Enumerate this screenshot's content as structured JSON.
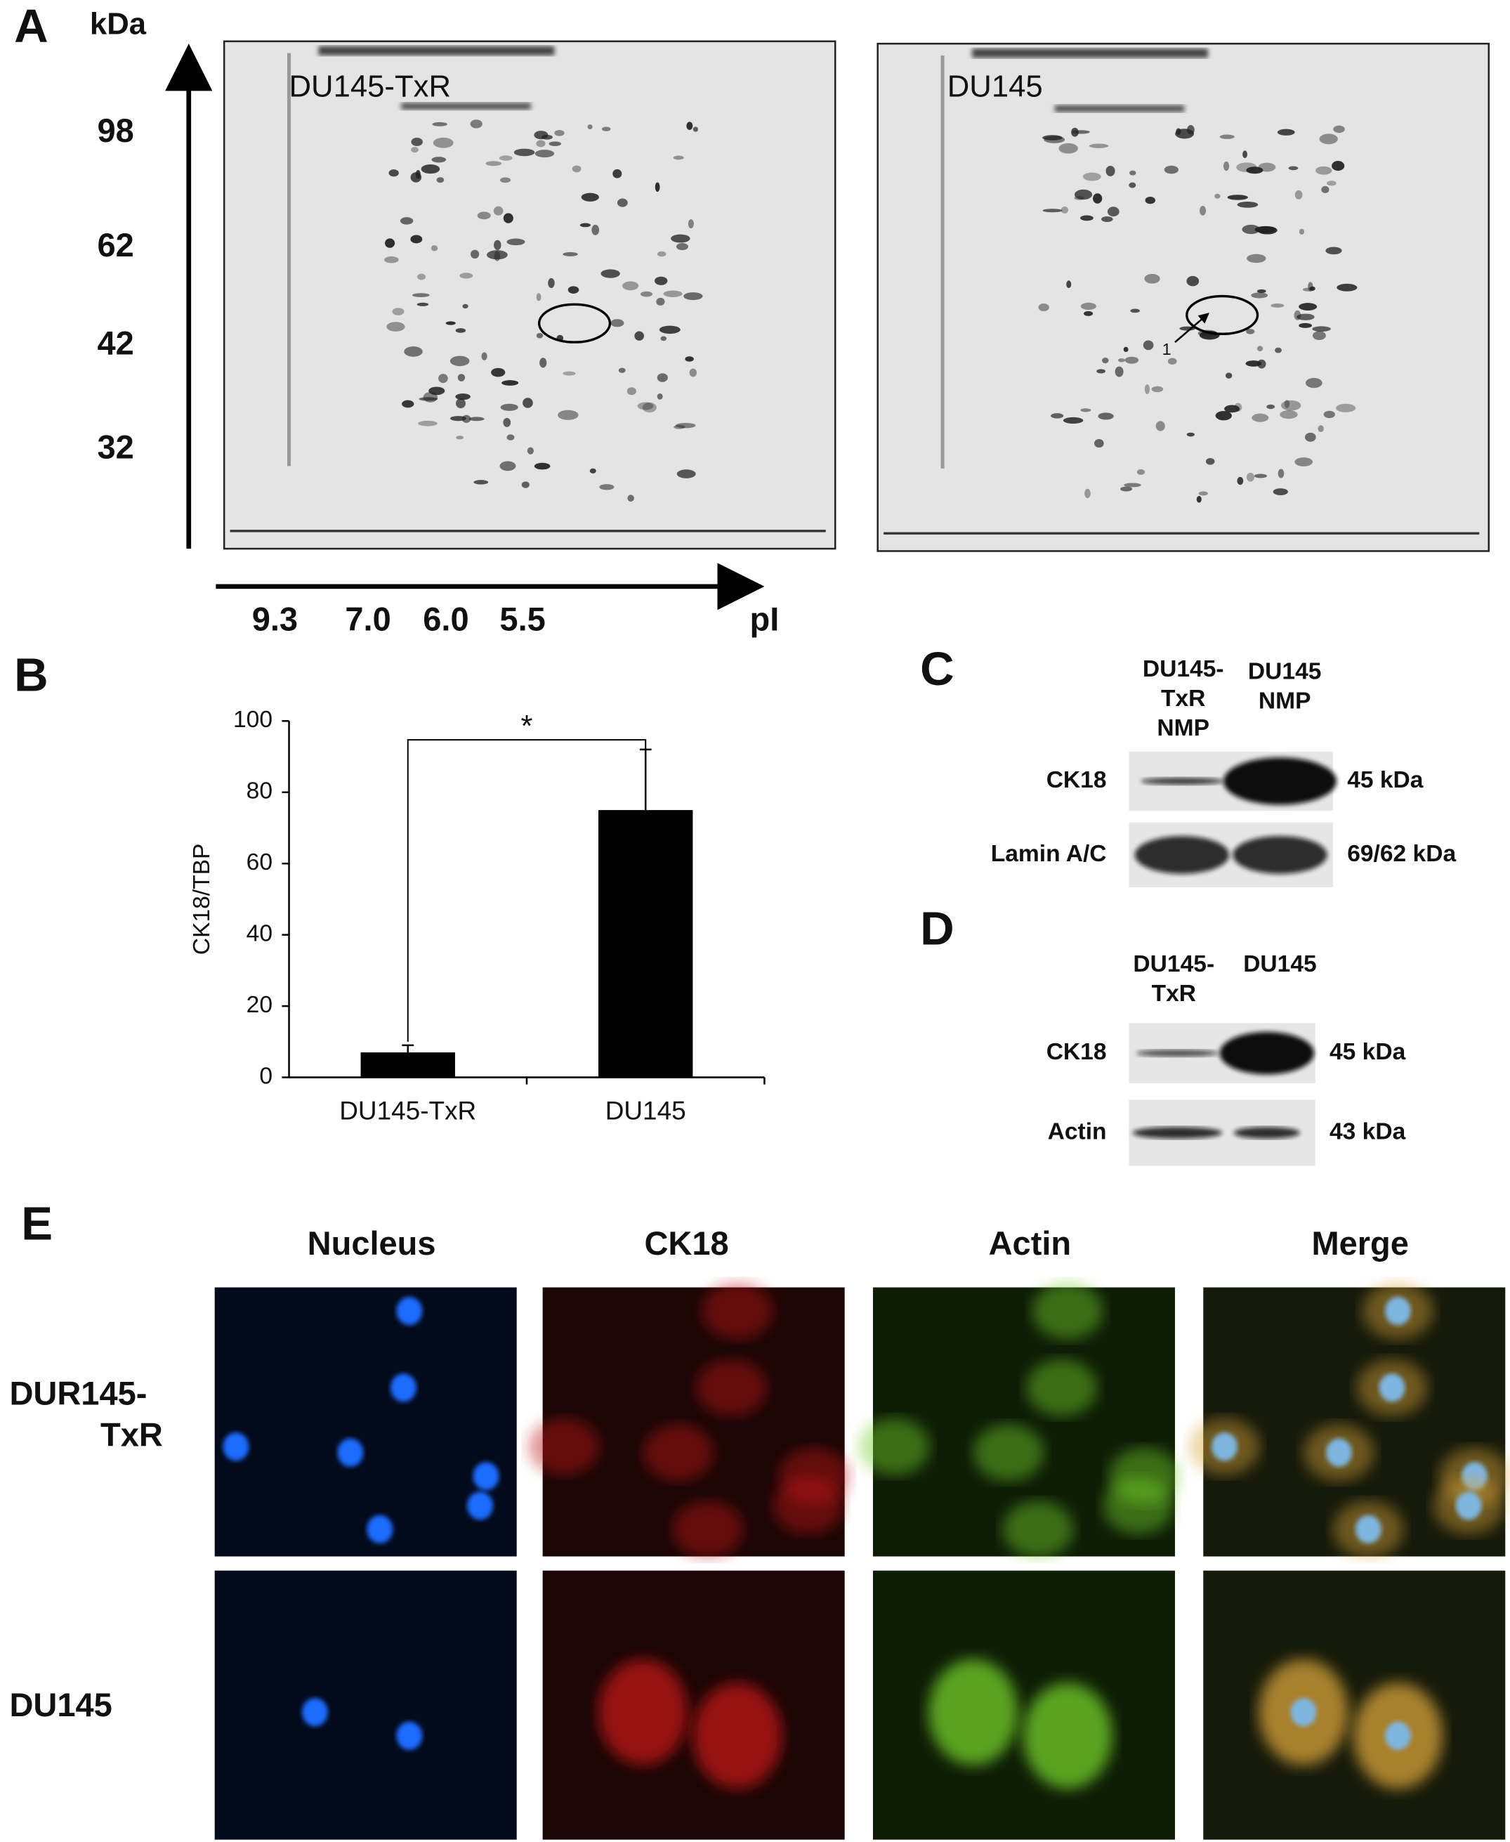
{
  "panel_a": {
    "label": "A",
    "y_unit": "kDa",
    "y_markers": [
      "98",
      "62",
      "42",
      "32"
    ],
    "x_markers": [
      "9.3",
      "7.0",
      "6.0",
      "5.5"
    ],
    "x_unit": "pI",
    "gels": [
      "DU145-TxR",
      "DU145"
    ],
    "spot_label": "1"
  },
  "chart_data": {
    "type": "bar",
    "panel_label": "B",
    "y_label": "CK18/TBP",
    "categories": [
      "DU145-TxR",
      "DU145"
    ],
    "values": [
      7,
      75
    ],
    "errors": [
      2,
      17
    ],
    "color": "#000000",
    "ylim": [
      0,
      100
    ],
    "yticks": [
      0,
      20,
      40,
      60,
      80,
      100
    ],
    "annotation": "*"
  },
  "panel_c": {
    "label": "C",
    "columns": [
      [
        "DU145-",
        "TxR",
        "NMP"
      ],
      [
        "DU145",
        "NMP"
      ]
    ],
    "rows": [
      {
        "name": "CK18",
        "size": "45 kDa"
      },
      {
        "name": "Lamin A/C",
        "size": "69/62 kDa"
      }
    ]
  },
  "panel_d": {
    "label": "D",
    "columns": [
      [
        "DU145-",
        "TxR"
      ],
      [
        "DU145"
      ]
    ],
    "rows": [
      {
        "name": "CK18",
        "size": "45 kDa"
      },
      {
        "name": "Actin",
        "size": "43 kDa"
      }
    ]
  },
  "panel_e": {
    "label": "E",
    "columns": [
      "Nucleus",
      "CK18",
      "Actin",
      "Merge"
    ],
    "rows": [
      [
        "DUR145-",
        "TxR"
      ],
      [
        "DU145"
      ]
    ]
  }
}
